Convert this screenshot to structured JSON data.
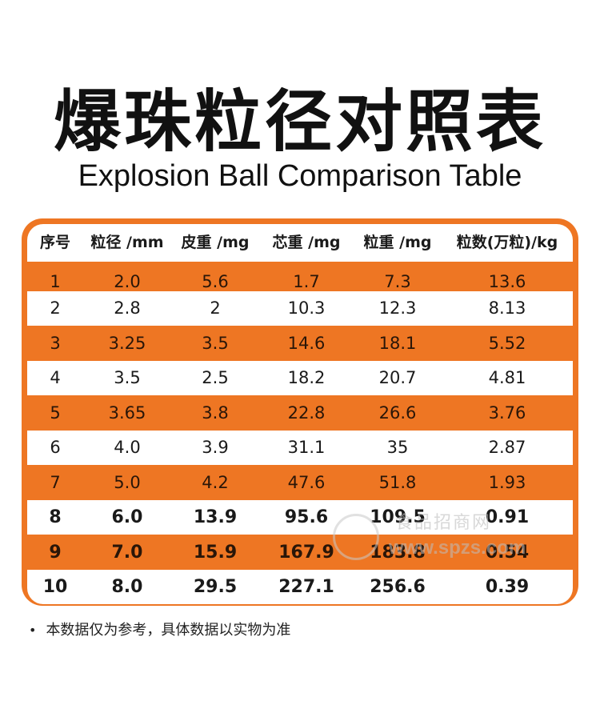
{
  "title": "爆珠粒径对照表",
  "subtitle": "Explosion Ball Comparison Table",
  "table": {
    "headers": [
      "序号",
      "粒径 /mm",
      "皮重 /mg",
      "芯重 /mg",
      "粒重 /mg",
      "粒数(万粒)/kg"
    ],
    "rows": [
      [
        "1",
        "2.0",
        "5.6",
        "1.7",
        "7.3",
        "13.6"
      ],
      [
        "2",
        "2.8",
        "2",
        "10.3",
        "12.3",
        "8.13"
      ],
      [
        "3",
        "3.25",
        "3.5",
        "14.6",
        "18.1",
        "5.52"
      ],
      [
        "4",
        "3.5",
        "2.5",
        "18.2",
        "20.7",
        "4.81"
      ],
      [
        "5",
        "3.65",
        "3.8",
        "22.8",
        "26.6",
        "3.76"
      ],
      [
        "6",
        "4.0",
        "3.9",
        "31.1",
        "35",
        "2.87"
      ],
      [
        "7",
        "5.0",
        "4.2",
        "47.6",
        "51.8",
        "1.93"
      ],
      [
        "8",
        "6.0",
        "13.9",
        "95.6",
        "109.5",
        "0.91"
      ],
      [
        "9",
        "7.0",
        "15.9",
        "167.9",
        "183.8",
        "0.54"
      ],
      [
        "10",
        "8.0",
        "29.5",
        "227.1",
        "256.6",
        "0.39"
      ]
    ]
  },
  "note": {
    "bullet": "•",
    "text": "本数据仅为参考，具体数据以实物为准"
  },
  "watermark": {
    "name": "食品招商网",
    "url": "www.spzs.com"
  },
  "colors": {
    "accent": "#ee7623",
    "row_light": "#ffffff"
  }
}
